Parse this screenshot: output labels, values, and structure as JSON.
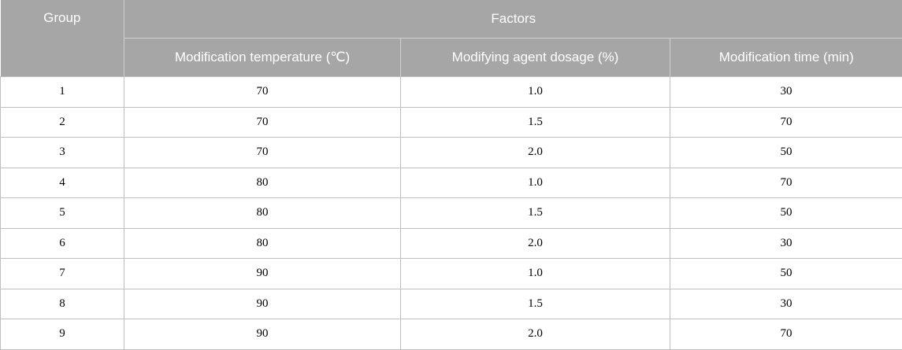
{
  "header": {
    "group": "Group",
    "factors": "Factors",
    "columns": [
      "Modification temperature (℃)",
      "Modifying agent dosage (%)",
      "Modification time (min)"
    ]
  },
  "rows": [
    [
      "1",
      "70",
      "1.0",
      "30"
    ],
    [
      "2",
      "70",
      "1.5",
      "70"
    ],
    [
      "3",
      "70",
      "2.0",
      "50"
    ],
    [
      "4",
      "80",
      "1.0",
      "70"
    ],
    [
      "5",
      "80",
      "1.5",
      "50"
    ],
    [
      "6",
      "80",
      "2.0",
      "30"
    ],
    [
      "7",
      "90",
      "1.0",
      "50"
    ],
    [
      "8",
      "90",
      "1.5",
      "30"
    ],
    [
      "9",
      "90",
      "2.0",
      "70"
    ]
  ]
}
